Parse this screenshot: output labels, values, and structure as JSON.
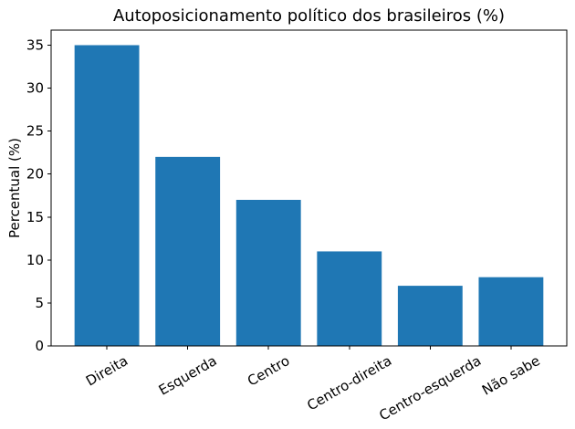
{
  "chart_data": {
    "type": "bar",
    "title": "Autoposicionamento político dos brasileiros (%)",
    "ylabel": "Percentual (%)",
    "xlabel": "",
    "categories": [
      "Direita",
      "Esquerda",
      "Centro",
      "Centro-direita",
      "Centro-esquerda",
      "Não sabe"
    ],
    "values": [
      35,
      22,
      17,
      11,
      7,
      8
    ],
    "yticks": [
      0,
      5,
      10,
      15,
      20,
      25,
      30,
      35
    ],
    "ylim": [
      0,
      36.75
    ],
    "xlim": [
      -0.69,
      5.69
    ],
    "bar_width_ratio": 0.8,
    "x_tick_rotation_deg": 30,
    "grid": false,
    "legend": "none",
    "bar_color": "#1f77b4",
    "axis_color": "#000000",
    "text_color": "#000000",
    "background_color": "#ffffff"
  }
}
